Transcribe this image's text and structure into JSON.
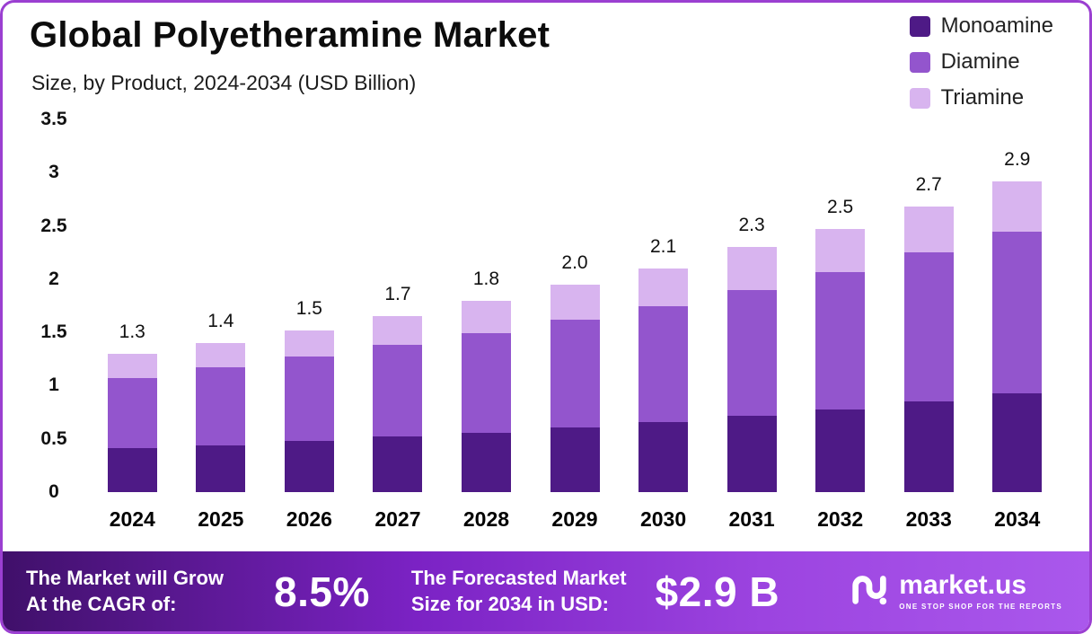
{
  "header": {
    "title": "Global Polyetheramine Market",
    "subtitle": "Size, by Product, 2024-2034 (USD Billion)"
  },
  "chart_data": {
    "type": "bar",
    "stacked": true,
    "title": "Global Polyetheramine Market",
    "subtitle": "Size, by Product, 2024-2034 (USD Billion)",
    "unit": "USD Billion",
    "categories": [
      "2024",
      "2025",
      "2026",
      "2027",
      "2028",
      "2029",
      "2030",
      "2031",
      "2032",
      "2033",
      "2034"
    ],
    "series": [
      {
        "name": "Monoamine",
        "color": "#4e1a86",
        "values": [
          0.41,
          0.44,
          0.48,
          0.52,
          0.56,
          0.61,
          0.66,
          0.72,
          0.78,
          0.85,
          0.93
        ]
      },
      {
        "name": "Diamine",
        "color": "#9355cd",
        "values": [
          0.66,
          0.73,
          0.79,
          0.86,
          0.93,
          1.01,
          1.09,
          1.18,
          1.29,
          1.4,
          1.52
        ]
      },
      {
        "name": "Triamine",
        "color": "#d8b4ef",
        "values": [
          0.23,
          0.23,
          0.25,
          0.27,
          0.31,
          0.33,
          0.35,
          0.4,
          0.4,
          0.43,
          0.47
        ]
      }
    ],
    "totals": [
      "1.3",
      "1.4",
      "1.5",
      "1.7",
      "1.8",
      "2.0",
      "2.1",
      "2.3",
      "2.5",
      "2.7",
      "2.9"
    ],
    "ylim": [
      0,
      3.5
    ],
    "yticks": [
      0,
      0.5,
      1,
      1.5,
      2,
      2.5,
      3,
      3.5
    ],
    "ytick_labels": [
      "0",
      "0.5",
      "1",
      "1.5",
      "2",
      "2.5",
      "3",
      "3.5"
    ],
    "grid": false,
    "legend_position": "top-right"
  },
  "footer": {
    "cagr_label_line1": "The Market will Grow",
    "cagr_label_line2": "At the CAGR of:",
    "cagr_value": "8.5%",
    "forecast_label_line1": "The Forecasted Market",
    "forecast_label_line2": "Size for 2034 in USD:",
    "forecast_value": "$2.9 B",
    "brand": "market.us",
    "tagline": "ONE STOP SHOP FOR THE REPORTS"
  },
  "colors": {
    "frame_border": "#9b3fd1",
    "banner_gradient_start": "#40106a",
    "banner_gradient_end": "#aa58ec",
    "title_text": "#0c0c0c",
    "banner_text": "#ffffff"
  }
}
